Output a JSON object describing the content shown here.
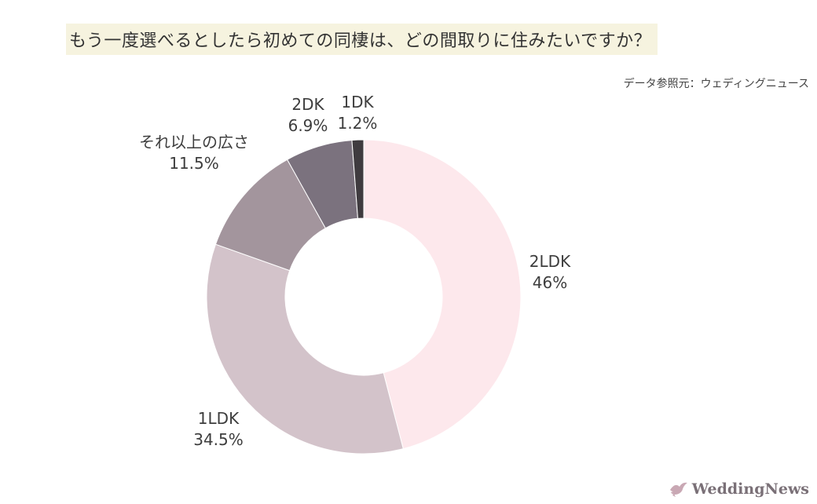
{
  "title": "もう一度選べるとしたら初めての同棲は、どの間取りに住みたいですか？",
  "source": "データ参照元：ウェディングニュース",
  "brand": {
    "name": "WeddingNews",
    "icon": "dove-icon"
  },
  "chart_data": {
    "type": "pie",
    "subtype": "donut",
    "title": "もう一度選べるとしたら初めての同棲は、どの間取りに住みたいですか？",
    "unit": "%",
    "slices": [
      {
        "label": "2LDK",
        "value": 46,
        "value_label": "46%",
        "color": "#fde8ec"
      },
      {
        "label": "1LDK",
        "value": 34.5,
        "value_label": "34.5%",
        "color": "#d3c3ca"
      },
      {
        "label": "それ以上の広さ",
        "value": 11.5,
        "value_label": "11.5%",
        "color": "#a3959d"
      },
      {
        "label": "2DK",
        "value": 6.9,
        "value_label": "6.9%",
        "color": "#7b727e"
      },
      {
        "label": "1DK",
        "value": 1.2,
        "value_label": "1.2%",
        "color": "#3f3b3f"
      }
    ],
    "start_angle": "12 o'clock",
    "direction": "clockwise",
    "legend": "none (labels beside slices)"
  }
}
